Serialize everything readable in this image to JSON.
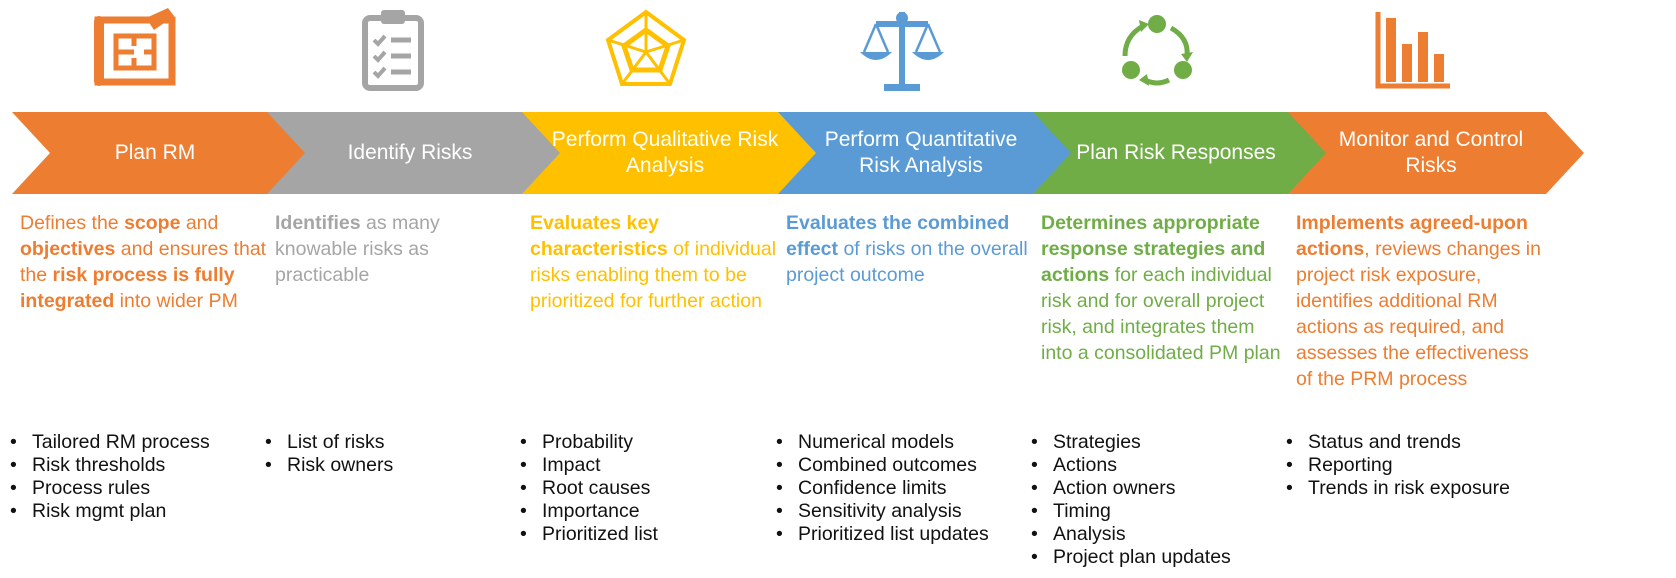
{
  "steps": [
    {
      "title": "Plan RM",
      "color": "#ED7D31",
      "icon": "blueprint-icon",
      "description": [
        {
          "text": "Defines the ",
          "bold": false
        },
        {
          "text": "scope",
          "bold": true
        },
        {
          "text": " and ",
          "bold": false
        },
        {
          "text": "objectives",
          "bold": true
        },
        {
          "text": " and ensures that the ",
          "bold": false
        },
        {
          "text": "risk process is fully integrated",
          "bold": true
        },
        {
          "text": " into wider PM",
          "bold": false
        }
      ],
      "outputs": [
        "Tailored RM process",
        "Risk thresholds",
        "Process rules",
        "Risk mgmt plan"
      ]
    },
    {
      "title": "Identify Risks",
      "color": "#A5A5A5",
      "icon": "clipboard-checklist-icon",
      "description": [
        {
          "text": "Identifies",
          "bold": true
        },
        {
          "text": " as many knowable risks as practicable",
          "bold": false
        }
      ],
      "outputs": [
        "List of risks",
        "Risk owners"
      ]
    },
    {
      "title": "Perform Qualitative Risk Analysis",
      "color": "#FFC000",
      "icon": "radar-chart-icon",
      "description": [
        {
          "text": "Evaluates key characteristics",
          "bold": true
        },
        {
          "text": " of individual risks enabling them to be prioritized for further action",
          "bold": false
        }
      ],
      "outputs": [
        "Probability",
        "Impact",
        "Root causes",
        "Importance",
        "Prioritized list"
      ]
    },
    {
      "title": "Perform Quantitative Risk Analysis",
      "color": "#5B9BD5",
      "icon": "balance-scale-icon",
      "description": [
        {
          "text": "Evaluates the combined effect",
          "bold": true
        },
        {
          "text": " of risks on the overall project outcome",
          "bold": false
        }
      ],
      "outputs": [
        "Numerical models",
        "Combined outcomes",
        "Confidence limits",
        "Sensitivity analysis",
        "Prioritized list updates"
      ]
    },
    {
      "title": "Plan Risk Responses",
      "color": "#70AD47",
      "icon": "cycle-arrows-icon",
      "description": [
        {
          "text": "Determines appropriate response strategies and actions",
          "bold": true
        },
        {
          "text": " for each individual risk and for overall project risk, and integrates them into a consolidated PM plan",
          "bold": false
        }
      ],
      "outputs": [
        "Strategies",
        "Actions",
        "Action owners",
        "Timing",
        "Analysis",
        "Project plan updates"
      ]
    },
    {
      "title": "Monitor and Control Risks",
      "color": "#ED7D31",
      "icon": "bar-chart-icon",
      "description": [
        {
          "text": "Implements agreed-upon actions",
          "bold": true
        },
        {
          "text": ", reviews changes in project risk exposure, identifies additional RM actions as required, and assesses the effectiveness of the PRM process",
          "bold": false
        }
      ],
      "outputs": [
        "Status and trends",
        "Reporting",
        "Trends in risk exposure"
      ]
    }
  ]
}
